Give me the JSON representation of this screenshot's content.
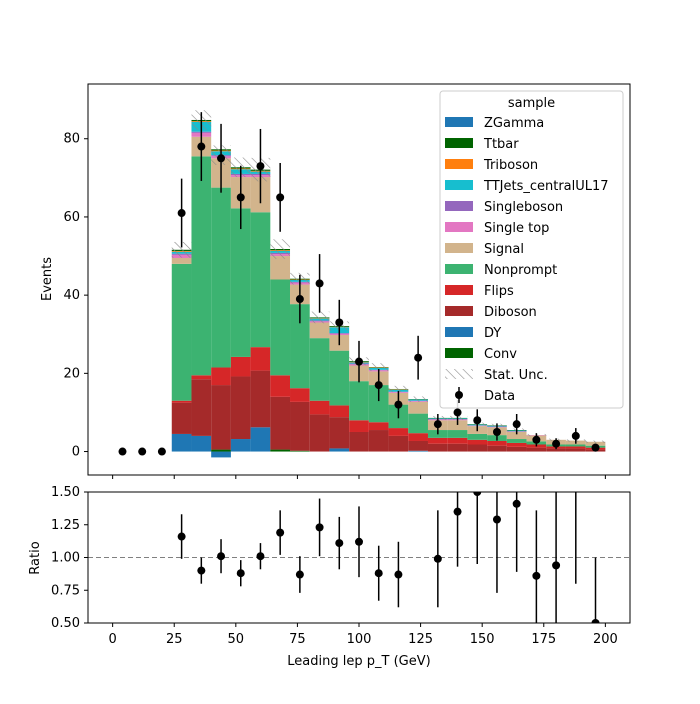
{
  "chart_data": [
    {
      "type": "stacked_histogram",
      "ylabel": "Events",
      "xlim": [
        -10,
        210
      ],
      "ylim": [
        -6,
        94
      ],
      "yticks": [
        0,
        20,
        40,
        60,
        80
      ],
      "bins": [
        24,
        32,
        40,
        48,
        56,
        64,
        72,
        80,
        88,
        96,
        104,
        112,
        120,
        128,
        136,
        144,
        152,
        160,
        168,
        176,
        184,
        192,
        200
      ],
      "series": [
        {
          "name": "ZGamma",
          "color": "#1f77b4",
          "values": [
            0,
            0,
            0,
            0,
            0,
            0,
            0,
            0,
            0,
            0,
            0,
            0,
            0,
            0,
            0,
            0,
            0,
            0,
            0,
            0,
            0,
            0
          ]
        },
        {
          "name": "Ttbar",
          "color": "#006400",
          "values": [
            0.3,
            0.3,
            0.3,
            0.3,
            0.3,
            0.3,
            0.2,
            0.2,
            0.2,
            0.2,
            0.1,
            0.1,
            0.1,
            0.1,
            0.1,
            0.1,
            0.1,
            0.1,
            0,
            0,
            0,
            0
          ]
        },
        {
          "name": "Triboson",
          "color": "#ff7f0e",
          "values": [
            0.2,
            0.2,
            0.2,
            0.2,
            0.2,
            0.2,
            0.1,
            0.1,
            0.1,
            0.1,
            0.1,
            0.1,
            0,
            0,
            0,
            0,
            0,
            0,
            0,
            0,
            0,
            0
          ]
        },
        {
          "name": "TTJets_centralUL17",
          "color": "#17becf",
          "values": [
            0.5,
            2.5,
            1.0,
            1.2,
            0.6,
            0.5,
            0.5,
            0.5,
            1.5,
            0.3,
            0.5,
            0.5,
            0.3,
            0.2,
            0.2,
            0.2,
            0.2,
            0.2,
            0,
            0,
            0,
            0
          ]
        },
        {
          "name": "Singleboson",
          "color": "#9467bd",
          "values": [
            0.3,
            0.3,
            0.3,
            0.3,
            0.3,
            0.3,
            0.2,
            0.2,
            0.2,
            0.2,
            0.1,
            0.1,
            0.1,
            0.1,
            0.1,
            0.1,
            0.1,
            0.1,
            0,
            0,
            0,
            0
          ]
        },
        {
          "name": "Single top",
          "color": "#e377c2",
          "values": [
            0.8,
            1.0,
            0.5,
            0.5,
            0.5,
            0.5,
            0.5,
            0.3,
            0.3,
            0.3,
            0.3,
            0.2,
            0.2,
            0.2,
            0.2,
            0.1,
            0.1,
            0.1,
            0.1,
            0,
            0,
            0
          ]
        },
        {
          "name": "Signal",
          "color": "#d2b48c",
          "values": [
            1.5,
            5.0,
            7.5,
            8.0,
            9.0,
            6.0,
            5.0,
            4.0,
            4.0,
            4.0,
            3.5,
            3.0,
            3.0,
            2.5,
            2.5,
            2.0,
            2.0,
            1.8,
            1.5,
            1.2,
            1.0,
            1.0
          ]
        },
        {
          "name": "Nonprompt",
          "color": "#3cb371",
          "values": [
            35,
            56,
            46,
            38,
            34.5,
            24.5,
            21.5,
            16,
            14,
            10,
            9.5,
            6,
            5,
            2,
            2,
            1.5,
            1.5,
            1,
            0.8,
            0.5,
            0.5,
            0.5
          ]
        },
        {
          "name": "Flips",
          "color": "#d62728",
          "values": [
            0.5,
            1.0,
            4.5,
            5.0,
            6.0,
            5.5,
            3.5,
            3.5,
            3.0,
            3.0,
            2.0,
            2.0,
            2.0,
            1.5,
            1.5,
            1.2,
            1.2,
            1.0,
            0.8,
            0.5,
            0.5,
            0.5
          ]
        },
        {
          "name": "Diboson",
          "color": "#a52a2a",
          "values": [
            8.0,
            14.5,
            16.5,
            16.0,
            14.5,
            13.5,
            12.5,
            9.5,
            8.0,
            5.0,
            5.5,
            4.0,
            2.5,
            2.0,
            2.0,
            1.8,
            1.5,
            1.2,
            1.0,
            0.8,
            0.8,
            0.5
          ]
        },
        {
          "name": "DY",
          "color": "#1f77b4",
          "values": [
            4.5,
            4.0,
            -1.5,
            3.2,
            6.2,
            0,
            0,
            0,
            0.8,
            0,
            0,
            0,
            0.2,
            0,
            0,
            0,
            0,
            0,
            0,
            0,
            0,
            0
          ]
        },
        {
          "name": "Conv",
          "color": "#006400",
          "values": [
            0,
            0,
            0.5,
            0,
            0,
            0.5,
            0.2,
            0,
            0,
            0,
            0,
            0,
            0,
            0,
            0,
            0,
            0,
            0,
            0,
            0,
            0,
            0
          ]
        }
      ],
      "stat_unc_label": "Stat. Unc.",
      "stat_unc": [
        2.0,
        2.5,
        2.5,
        2.5,
        3.0,
        2.5,
        1.5,
        1.5,
        1.2,
        1.0,
        1.0,
        0.8,
        0.7,
        0.5,
        0.5,
        0.4,
        0.4,
        0.4,
        0.3,
        0.3,
        0.3,
        0.3
      ],
      "data_label": "Data",
      "data": {
        "x": [
          4,
          12,
          20,
          28,
          36,
          44,
          52,
          60,
          68,
          76,
          84,
          92,
          100,
          108,
          116,
          124,
          132,
          140,
          148,
          156,
          164,
          172,
          180,
          188,
          196
        ],
        "y": [
          0,
          0,
          0,
          61,
          78,
          75,
          65,
          73,
          65,
          39,
          43,
          33,
          23,
          17,
          12,
          24,
          7,
          10,
          8,
          5,
          7,
          3,
          2,
          4,
          1
        ],
        "err": [
          0,
          0,
          0,
          8.8,
          8.8,
          8.8,
          8.1,
          9.5,
          8.8,
          6.2,
          7.5,
          5.8,
          5.3,
          4.1,
          3.5,
          5.6,
          2.6,
          3.2,
          2.8,
          2.2,
          2.6,
          1.7,
          1.4,
          2.0,
          1.0
        ]
      },
      "legend": {
        "title": "sample",
        "placement": "upper right"
      }
    },
    {
      "type": "scatter",
      "xlabel": "Leading lep p_T (GeV)",
      "ylabel": "Ratio",
      "xlim": [
        -10,
        210
      ],
      "ylim": [
        0.5,
        1.5
      ],
      "yticks": [
        "0.50",
        "0.75",
        "1.00",
        "1.25",
        "1.50"
      ],
      "xticks": [
        "0",
        "25",
        "50",
        "75",
        "100",
        "125",
        "150",
        "175",
        "200"
      ],
      "reference_line": 1.0,
      "x": [
        28,
        36,
        44,
        52,
        60,
        68,
        76,
        84,
        92,
        100,
        108,
        116,
        132,
        140,
        148,
        156,
        164,
        172,
        180,
        188,
        196
      ],
      "y": [
        1.16,
        0.9,
        1.01,
        0.88,
        1.01,
        1.19,
        0.87,
        1.23,
        1.11,
        1.12,
        0.88,
        0.87,
        0.99,
        1.35,
        1.5,
        1.29,
        1.41,
        0.86,
        0.94,
        1.6,
        0.5
      ],
      "err": [
        0.17,
        0.1,
        0.13,
        0.1,
        0.1,
        0.17,
        0.14,
        0.22,
        0.2,
        0.27,
        0.21,
        0.25,
        0.37,
        0.42,
        0.55,
        0.56,
        0.52,
        0.5,
        0.6,
        0.8,
        0.5
      ]
    }
  ]
}
